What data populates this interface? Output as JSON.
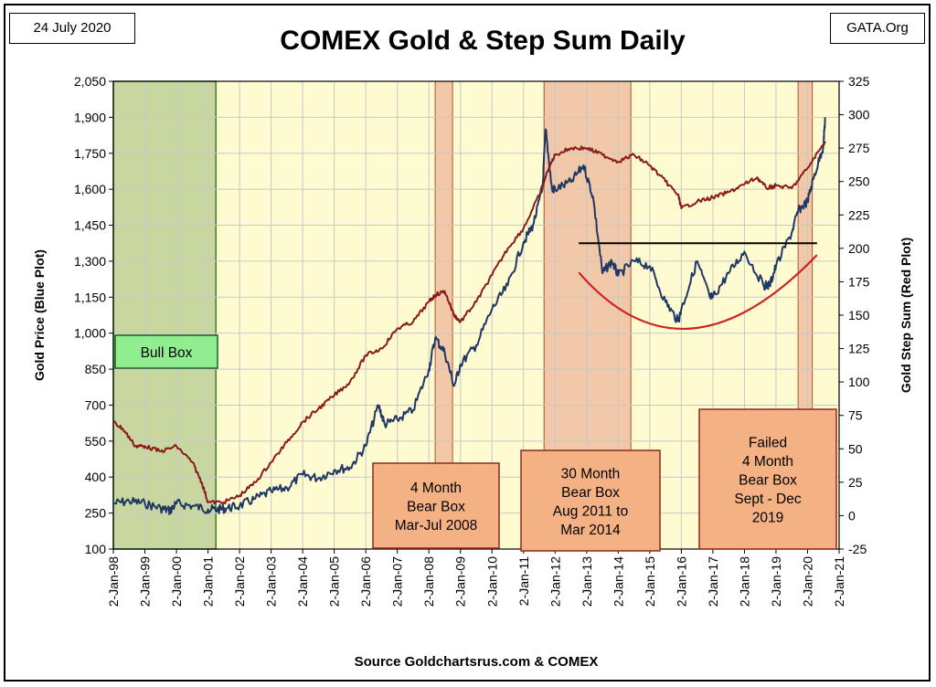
{
  "header": {
    "date": "24 July 2020",
    "site": "GATA.Org",
    "title": "COMEX Gold & Step Sum Daily",
    "source": "Source Goldchartsrus.com & COMEX"
  },
  "chart_data": {
    "type": "line",
    "title": "COMEX Gold & Step Sum Daily",
    "xlabel": "",
    "ylabel_left": "Gold Price   (Blue Plot)",
    "ylabel_right": "Gold Step Sum   (Red Plot)",
    "x_ticks": [
      "2-Jan-98",
      "2-Jan-99",
      "2-Jan-00",
      "2-Jan-01",
      "2-Jan-02",
      "2-Jan-03",
      "2-Jan-04",
      "2-Jan-05",
      "2-Jan-06",
      "2-Jan-07",
      "2-Jan-08",
      "2-Jan-09",
      "2-Jan-10",
      "2-Jan-11",
      "2-Jan-12",
      "2-Jan-13",
      "2-Jan-14",
      "2-Jan-15",
      "2-Jan-16",
      "2-Jan-17",
      "2-Jan-18",
      "2-Jan-19",
      "2-Jan-20",
      "2-Jan-21"
    ],
    "x_range": [
      1998.0,
      2021.0
    ],
    "ylim_left": [
      100,
      2050
    ],
    "y_ticks_left": [
      "100",
      "250",
      "400",
      "550",
      "700",
      "850",
      "1,000",
      "1,150",
      "1,300",
      "1,450",
      "1,600",
      "1,750",
      "1,900",
      "2,050"
    ],
    "ylim_right": [
      -25,
      325
    ],
    "y_ticks_right": [
      "-25",
      "0",
      "25",
      "50",
      "75",
      "100",
      "125",
      "150",
      "175",
      "200",
      "225",
      "250",
      "275",
      "300",
      "325"
    ],
    "grid": true,
    "series": [
      {
        "color": "#1f3864",
        "axis": "left",
        "x": [
          1998.0,
          1998.5,
          1999.0,
          1999.5,
          1999.8,
          2000.0,
          2000.5,
          2001.0,
          2001.3,
          2001.6,
          2002.0,
          2002.5,
          2003.0,
          2003.5,
          2004.0,
          2004.5,
          2005.0,
          2005.5,
          2006.0,
          2006.4,
          2006.6,
          2007.0,
          2007.5,
          2008.0,
          2008.2,
          2008.5,
          2008.8,
          2009.0,
          2009.5,
          2010.0,
          2010.5,
          2011.0,
          2011.3,
          2011.6,
          2011.7,
          2011.9,
          2012.0,
          2012.5,
          2012.9,
          2013.2,
          2013.5,
          2013.8,
          2014.0,
          2014.5,
          2015.0,
          2015.5,
          2015.9,
          2016.0,
          2016.5,
          2016.9,
          2017.0,
          2017.5,
          2018.0,
          2018.6,
          2018.8,
          2019.0,
          2019.5,
          2019.7,
          2020.0,
          2020.2,
          2020.5,
          2020.56
        ],
        "y": [
          290,
          300,
          290,
          270,
          260,
          290,
          280,
          265,
          265,
          270,
          280,
          310,
          340,
          355,
          410,
          395,
          430,
          440,
          530,
          700,
          620,
          640,
          680,
          850,
          980,
          920,
          780,
          870,
          950,
          1100,
          1200,
          1380,
          1450,
          1600,
          1850,
          1600,
          1600,
          1630,
          1700,
          1570,
          1250,
          1300,
          1240,
          1300,
          1280,
          1130,
          1050,
          1100,
          1300,
          1150,
          1150,
          1250,
          1340,
          1200,
          1200,
          1280,
          1420,
          1510,
          1550,
          1650,
          1780,
          1900
        ]
      },
      {
        "color": "#8b1a1a",
        "axis": "right",
        "x": [
          1998.0,
          1998.3,
          1998.7,
          1999.0,
          1999.5,
          2000.0,
          2000.5,
          2000.8,
          2001.0,
          2001.5,
          2002.0,
          2002.5,
          2003.0,
          2003.5,
          2004.0,
          2004.5,
          2005.0,
          2005.5,
          2006.0,
          2006.5,
          2007.0,
          2007.5,
          2008.0,
          2008.2,
          2008.5,
          2008.8,
          2009.0,
          2009.5,
          2010.0,
          2010.5,
          2011.0,
          2011.5,
          2011.8,
          2012.0,
          2012.5,
          2013.0,
          2013.5,
          2014.0,
          2014.5,
          2015.0,
          2015.5,
          2015.9,
          2016.0,
          2016.5,
          2017.0,
          2017.5,
          2018.0,
          2018.4,
          2018.7,
          2019.0,
          2019.5,
          2020.0,
          2020.56
        ],
        "y": [
          70,
          65,
          52,
          52,
          48,
          52,
          40,
          25,
          10,
          10,
          15,
          25,
          40,
          55,
          70,
          80,
          90,
          100,
          120,
          125,
          140,
          145,
          160,
          165,
          168,
          150,
          145,
          160,
          180,
          200,
          215,
          240,
          260,
          270,
          275,
          275,
          270,
          265,
          270,
          262,
          250,
          240,
          230,
          235,
          238,
          242,
          248,
          253,
          245,
          247,
          245,
          260,
          280
        ]
      }
    ],
    "fit_lines": [
      {
        "type": "horizontal",
        "y_left": 1375,
        "x": [
          2012.75,
          2020.3
        ],
        "color": "#000000"
      },
      {
        "type": "curve",
        "axis": "right",
        "color": "#cc2222",
        "x": [
          2012.75,
          2016.3,
          2020.3
        ],
        "y": [
          182,
          140,
          195
        ]
      }
    ],
    "shaded_regions": [
      {
        "x": [
          1998.0,
          2001.25
        ],
        "color": "#c8d7a0"
      },
      {
        "x": [
          2008.2,
          2008.75
        ],
        "color": "#f2c9a8"
      },
      {
        "x": [
          2011.65,
          2014.4
        ],
        "color": "#f2c9a8"
      },
      {
        "x": [
          2019.7,
          2020.15
        ],
        "color": "#f2c9a8"
      }
    ],
    "annotations": [
      {
        "id": "bull",
        "lines": [
          "Bull Box"
        ],
        "fill": "#90ee90"
      },
      {
        "id": "bear2008",
        "lines": [
          "4 Month",
          "Bear Box",
          "Mar-Jul 2008"
        ],
        "fill": "#f4b183"
      },
      {
        "id": "bear2011",
        "lines": [
          "30 Month",
          "Bear Box",
          "Aug 2011 to",
          "Mar 2014"
        ],
        "fill": "#f4b183"
      },
      {
        "id": "bear2019",
        "lines": [
          "Failed",
          "4 Month",
          "Bear Box",
          "Sept - Dec",
          "2019"
        ],
        "fill": "#f4b183"
      }
    ],
    "colors": {
      "plot_background": "#fffbd0",
      "grid": "#c8c8c8"
    }
  }
}
